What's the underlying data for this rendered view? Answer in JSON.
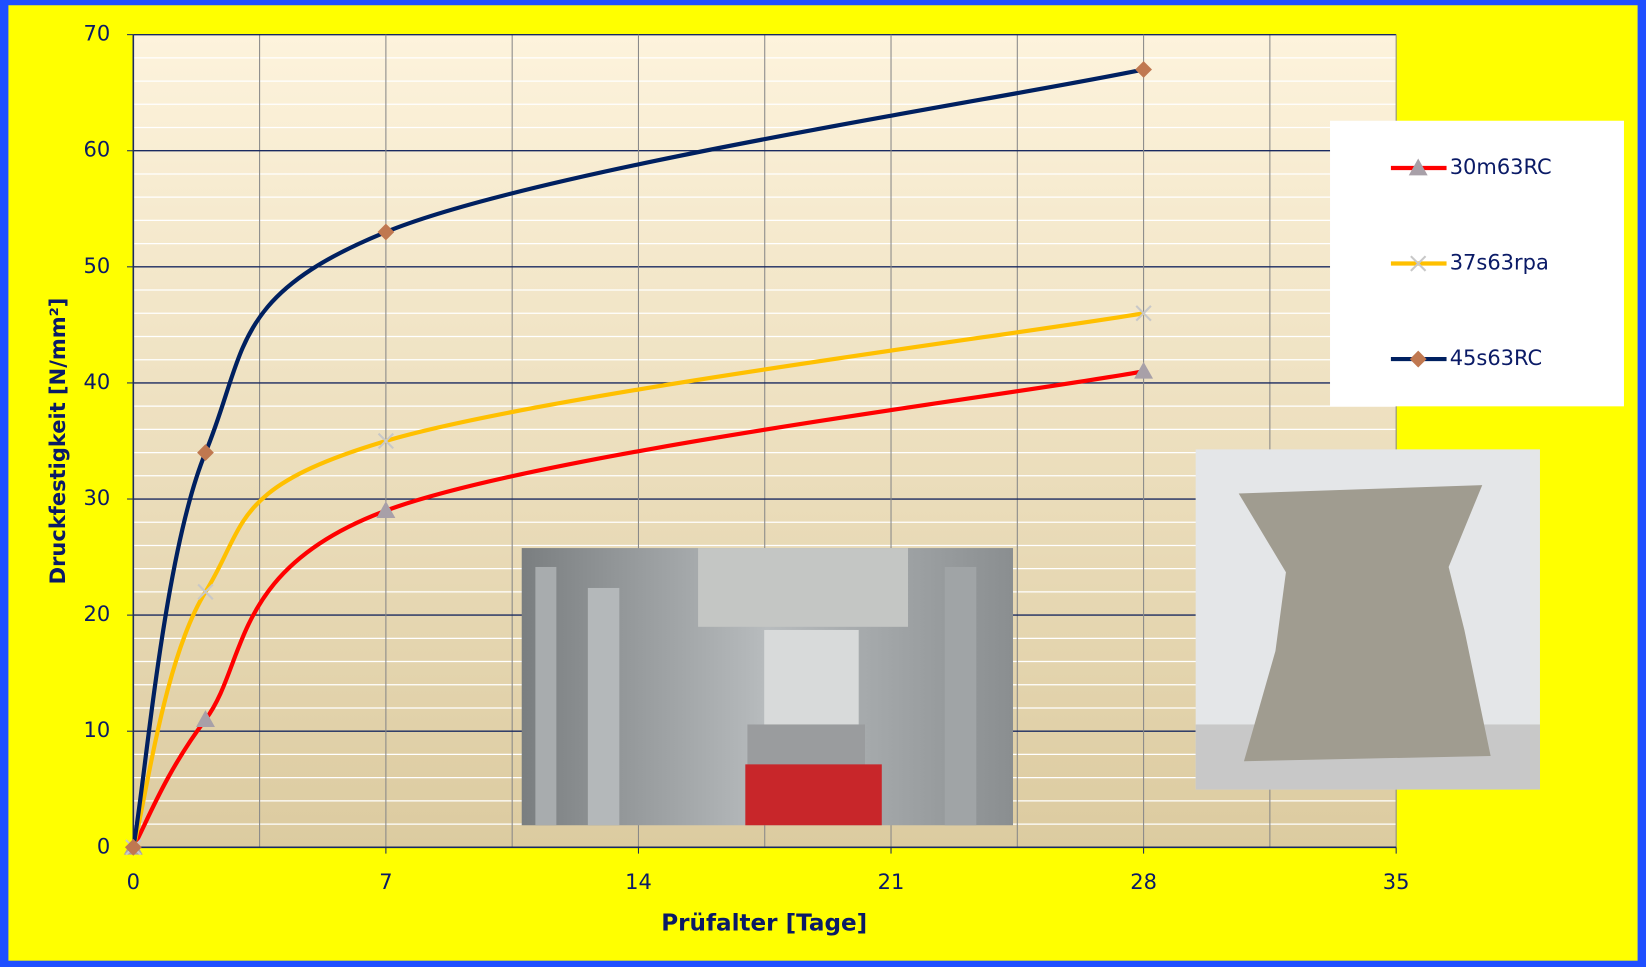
{
  "chart_data": {
    "type": "line",
    "x_label": "Prüfalter [Tage]",
    "y_label": "Druckfestigkeit [N/mm²]",
    "x": [
      0,
      2,
      7,
      28
    ],
    "series": [
      {
        "name": "30m63RC",
        "color": "#ff0000",
        "marker": "triangle",
        "marker_color": "#a8a0a8",
        "values": [
          0,
          11,
          29,
          41
        ]
      },
      {
        "name": "37s63rpa",
        "color": "#ffc000",
        "marker": "cross",
        "marker_color": "#c8c8c8",
        "values": [
          0,
          22,
          35,
          46
        ]
      },
      {
        "name": "45s63RC",
        "color": "#002060",
        "marker": "diamond",
        "marker_color": "#c07850",
        "values": [
          0,
          34,
          53,
          67
        ]
      }
    ],
    "xlim": [
      0,
      35
    ],
    "xticks": [
      0,
      7,
      14,
      21,
      28,
      35
    ],
    "xminorgrid": [
      3.5,
      10.5,
      17.5,
      24.5,
      31.5
    ],
    "ylim": [
      0,
      70
    ],
    "yticks": [
      0,
      10,
      20,
      30,
      40,
      50,
      60,
      70
    ],
    "yminorgrid": [
      2,
      4,
      6,
      8,
      12,
      14,
      16,
      18,
      22,
      24,
      26,
      28,
      32,
      34,
      36,
      38,
      42,
      44,
      46,
      48,
      52,
      54,
      56,
      58,
      62,
      64,
      66,
      68
    ],
    "grid": true,
    "smooth": true,
    "legend": "right"
  }
}
